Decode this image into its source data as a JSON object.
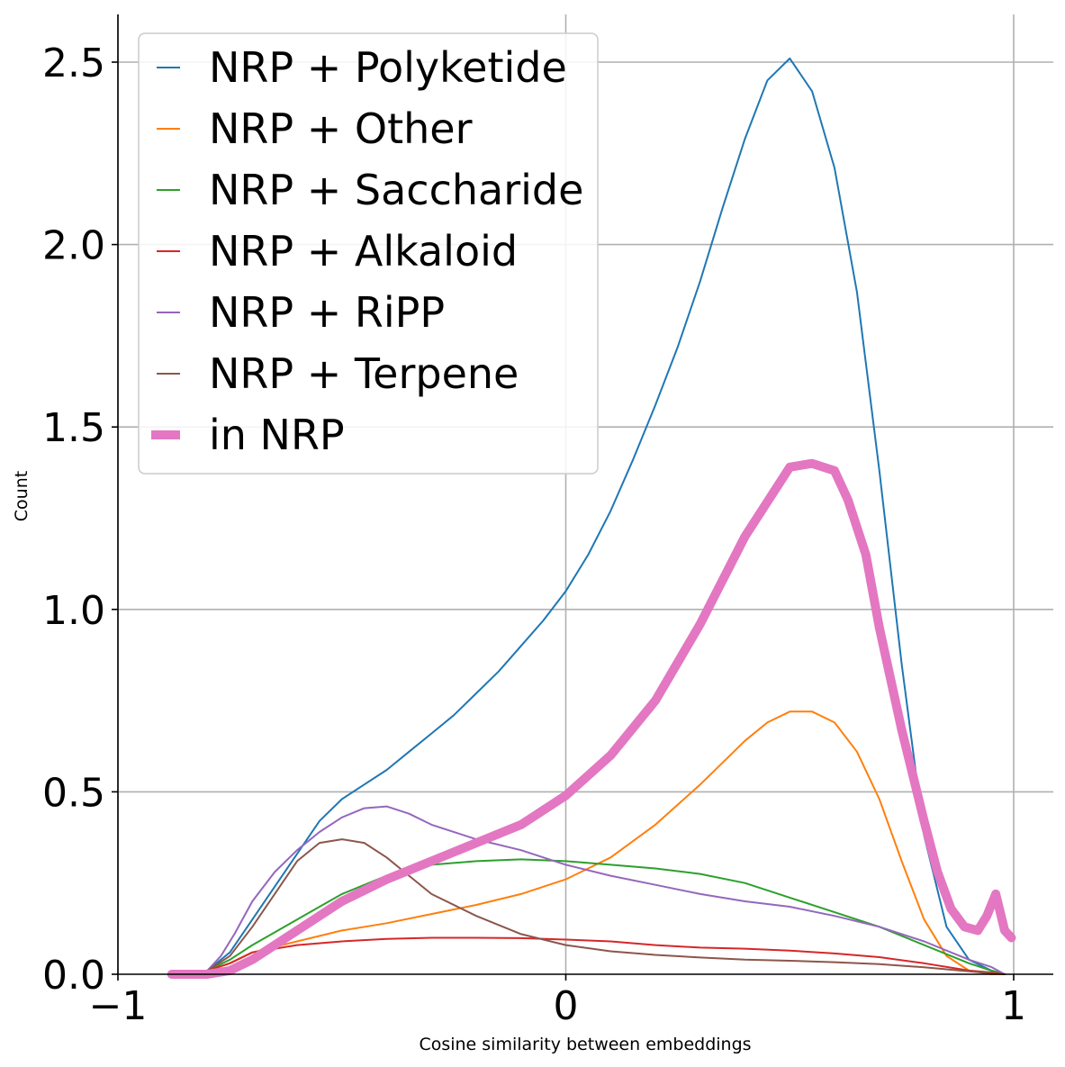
{
  "chart_data": {
    "type": "line",
    "xlabel": "Cosine similarity between embeddings",
    "ylabel": "Count",
    "xlim": [
      -1,
      1.08
    ],
    "ylim": [
      0,
      2.63
    ],
    "x_ticks": [
      -1,
      0,
      1
    ],
    "x_tick_labels": [
      "−1",
      "0",
      "1"
    ],
    "y_ticks": [
      0,
      0.5,
      1,
      1.5,
      2,
      2.5
    ],
    "y_tick_labels": [
      "0.0",
      "0.5",
      "1.0",
      "1.5",
      "2.0",
      "2.5"
    ],
    "grid": true,
    "legend_position": "upper-left",
    "series": [
      {
        "name": "NRP + Polyketide",
        "color": "#1f77b4",
        "width": "thin",
        "x": [
          -0.88,
          -0.8,
          -0.75,
          -0.7,
          -0.65,
          -0.6,
          -0.55,
          -0.5,
          -0.45,
          -0.4,
          -0.35,
          -0.3,
          -0.25,
          -0.2,
          -0.15,
          -0.1,
          -0.05,
          0,
          0.05,
          0.1,
          0.15,
          0.2,
          0.25,
          0.3,
          0.35,
          0.4,
          0.45,
          0.5,
          0.55,
          0.6,
          0.65,
          0.7,
          0.75,
          0.8,
          0.85,
          0.9,
          0.95,
          0.98
        ],
        "y": [
          0,
          0.01,
          0.06,
          0.15,
          0.24,
          0.33,
          0.42,
          0.48,
          0.52,
          0.56,
          0.61,
          0.66,
          0.71,
          0.77,
          0.83,
          0.9,
          0.97,
          1.05,
          1.15,
          1.27,
          1.41,
          1.56,
          1.72,
          1.9,
          2.1,
          2.29,
          2.45,
          2.51,
          2.42,
          2.21,
          1.87,
          1.38,
          0.85,
          0.38,
          0.13,
          0.04,
          0.01,
          0
        ]
      },
      {
        "name": "NRP + Other",
        "color": "#ff7f0e",
        "width": "thin",
        "x": [
          -0.88,
          -0.8,
          -0.75,
          -0.7,
          -0.6,
          -0.5,
          -0.4,
          -0.3,
          -0.2,
          -0.1,
          0,
          0.1,
          0.2,
          0.3,
          0.4,
          0.45,
          0.5,
          0.55,
          0.6,
          0.65,
          0.7,
          0.75,
          0.8,
          0.85,
          0.9,
          0.95,
          0.98
        ],
        "y": [
          0,
          0.01,
          0.03,
          0.06,
          0.09,
          0.12,
          0.14,
          0.165,
          0.19,
          0.22,
          0.26,
          0.32,
          0.41,
          0.52,
          0.64,
          0.69,
          0.72,
          0.72,
          0.69,
          0.61,
          0.48,
          0.31,
          0.15,
          0.05,
          0.01,
          0,
          0
        ]
      },
      {
        "name": "NRP + Saccharide",
        "color": "#2ca02c",
        "width": "thin",
        "x": [
          -0.88,
          -0.8,
          -0.75,
          -0.7,
          -0.6,
          -0.5,
          -0.4,
          -0.3,
          -0.2,
          -0.1,
          0,
          0.1,
          0.2,
          0.3,
          0.4,
          0.5,
          0.6,
          0.7,
          0.8,
          0.9,
          0.95,
          0.98
        ],
        "y": [
          0,
          0.01,
          0.04,
          0.08,
          0.15,
          0.22,
          0.27,
          0.3,
          0.31,
          0.315,
          0.31,
          0.3,
          0.29,
          0.275,
          0.25,
          0.21,
          0.17,
          0.13,
          0.08,
          0.03,
          0.01,
          0
        ]
      },
      {
        "name": "NRP + Alkaloid",
        "color": "#d62728",
        "width": "thin",
        "x": [
          -0.88,
          -0.8,
          -0.75,
          -0.7,
          -0.6,
          -0.5,
          -0.4,
          -0.3,
          -0.2,
          -0.1,
          0,
          0.1,
          0.2,
          0.3,
          0.4,
          0.5,
          0.6,
          0.7,
          0.8,
          0.9,
          0.95,
          0.98
        ],
        "y": [
          0,
          0.01,
          0.03,
          0.06,
          0.08,
          0.09,
          0.097,
          0.1,
          0.1,
          0.099,
          0.095,
          0.09,
          0.08,
          0.073,
          0.07,
          0.065,
          0.057,
          0.047,
          0.03,
          0.01,
          0.005,
          0
        ]
      },
      {
        "name": "NRP + RiPP",
        "color": "#9467bd",
        "width": "thin",
        "x": [
          -0.88,
          -0.8,
          -0.77,
          -0.74,
          -0.7,
          -0.65,
          -0.6,
          -0.55,
          -0.5,
          -0.45,
          -0.4,
          -0.35,
          -0.3,
          -0.2,
          -0.1,
          0,
          0.1,
          0.2,
          0.3,
          0.4,
          0.5,
          0.6,
          0.7,
          0.8,
          0.9,
          0.95,
          0.98
        ],
        "y": [
          0,
          0.01,
          0.05,
          0.11,
          0.2,
          0.28,
          0.34,
          0.39,
          0.43,
          0.455,
          0.46,
          0.44,
          0.41,
          0.37,
          0.34,
          0.3,
          0.27,
          0.245,
          0.22,
          0.2,
          0.185,
          0.16,
          0.13,
          0.09,
          0.04,
          0.02,
          0
        ]
      },
      {
        "name": "NRP + Terpene",
        "color": "#8c564b",
        "width": "thin",
        "x": [
          -0.88,
          -0.8,
          -0.75,
          -0.7,
          -0.65,
          -0.6,
          -0.55,
          -0.5,
          -0.45,
          -0.4,
          -0.35,
          -0.3,
          -0.2,
          -0.1,
          0,
          0.1,
          0.2,
          0.3,
          0.4,
          0.5,
          0.6,
          0.7,
          0.8,
          0.9,
          0.95,
          0.98
        ],
        "y": [
          0,
          0.01,
          0.05,
          0.13,
          0.22,
          0.31,
          0.36,
          0.37,
          0.36,
          0.32,
          0.27,
          0.22,
          0.16,
          0.11,
          0.08,
          0.063,
          0.053,
          0.046,
          0.04,
          0.037,
          0.033,
          0.028,
          0.019,
          0.008,
          0.003,
          0
        ]
      },
      {
        "name": "in NRP",
        "color": "#e377c2",
        "width": "thick",
        "x": [
          -0.88,
          -0.8,
          -0.75,
          -0.7,
          -0.6,
          -0.5,
          -0.4,
          -0.3,
          -0.2,
          -0.1,
          0,
          0.1,
          0.2,
          0.3,
          0.4,
          0.5,
          0.55,
          0.6,
          0.63,
          0.67,
          0.7,
          0.75,
          0.8,
          0.83,
          0.86,
          0.89,
          0.92,
          0.94,
          0.96,
          0.98,
          0.995
        ],
        "y": [
          0,
          0,
          0.01,
          0.04,
          0.12,
          0.2,
          0.26,
          0.31,
          0.36,
          0.41,
          0.49,
          0.6,
          0.75,
          0.96,
          1.2,
          1.39,
          1.4,
          1.38,
          1.3,
          1.15,
          0.95,
          0.67,
          0.42,
          0.28,
          0.18,
          0.13,
          0.12,
          0.16,
          0.22,
          0.12,
          0.1
        ]
      }
    ]
  }
}
